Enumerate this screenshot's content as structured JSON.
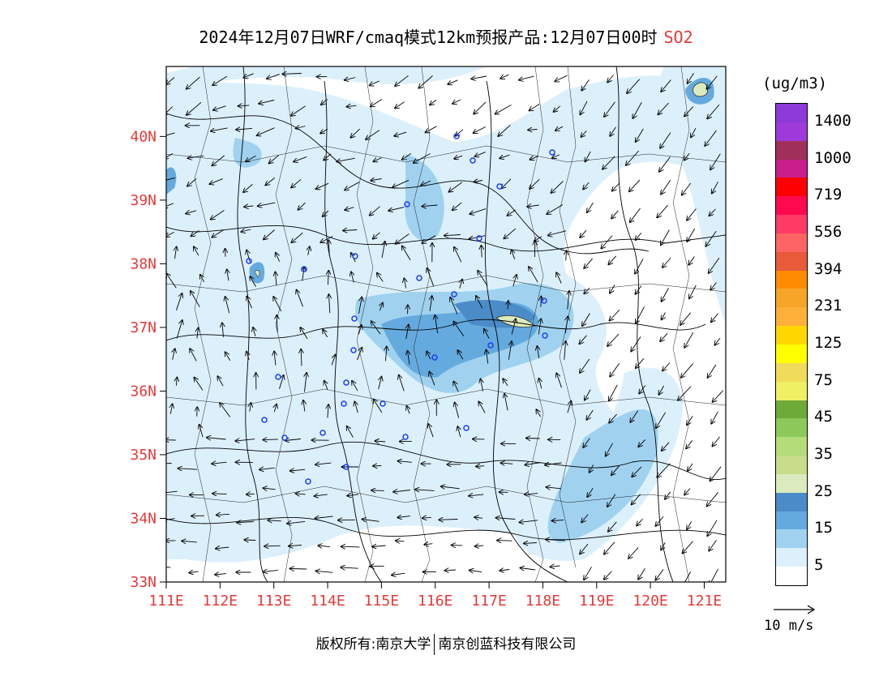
{
  "title": {
    "main": "2024年12月07日WRF/cmaq模式12km预报产品:12月07日00时",
    "species": "SO2"
  },
  "map": {
    "lat_labels": [
      "40N",
      "39N",
      "38N",
      "37N",
      "36N",
      "35N",
      "34N",
      "33N"
    ],
    "lon_labels": [
      "111E",
      "112E",
      "113E",
      "114E",
      "115E",
      "116E",
      "117E",
      "118E",
      "119E",
      "120E",
      "121E"
    ],
    "lon_range": [
      111,
      121.4
    ],
    "lat_range": [
      33,
      41.1
    ],
    "label_color": "#e63a3a",
    "wind_vectors": "synthetic"
  },
  "legend": {
    "unit": "(ug/m3)",
    "labels": [
      "1400",
      "1000",
      "719",
      "556",
      "394",
      "231",
      "125",
      "75",
      "45",
      "35",
      "25",
      "15",
      "5"
    ],
    "colors": [
      "#8c3ad9",
      "#9e3ad9",
      "#a0305a",
      "#c81e8a",
      "#ff0000",
      "#ff0a50",
      "#ff3a64",
      "#ff6464",
      "#e85a3a",
      "#ff8c00",
      "#f6a528",
      "#ffb03a",
      "#ffd700",
      "#ffff00",
      "#f0dc5a",
      "#f0f064",
      "#6eaa37",
      "#8cc85a",
      "#b4dc78",
      "#c8dc8c",
      "#dcebbe",
      "#4b8cc8",
      "#64aade",
      "#a0d2f0",
      "#dcf0fc",
      "#ffffff"
    ]
  },
  "vector_scale": {
    "label": "10 m/s"
  },
  "footer": {
    "left": "版权所有:南京大学",
    "right": "南京创蓝科技有限公司"
  }
}
